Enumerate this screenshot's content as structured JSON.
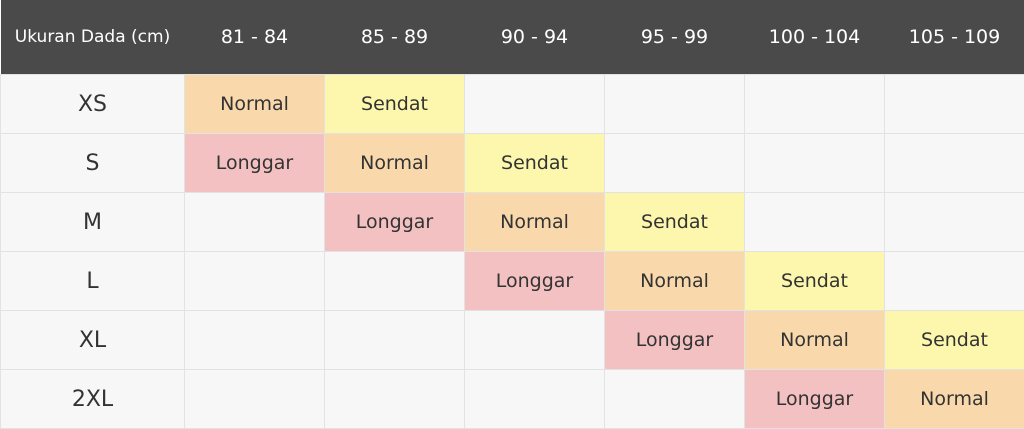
{
  "header": {
    "corner": "Ukuran Dada (cm)",
    "columns": [
      "81 - 84",
      "85 - 89",
      "90 - 94",
      "95 - 99",
      "100 - 104",
      "105 - 109"
    ]
  },
  "colors": {
    "header_bg": "#4a4a4a",
    "normal": "#f9d9ac",
    "sendat": "#fdf7ad",
    "longgar": "#f4c1c2",
    "empty": "#f7f7f7"
  },
  "rows": [
    {
      "size": "XS",
      "cells": [
        "Normal",
        "Sendat",
        "",
        "",
        "",
        ""
      ]
    },
    {
      "size": "S",
      "cells": [
        "Longgar",
        "Normal",
        "Sendat",
        "",
        "",
        ""
      ]
    },
    {
      "size": "M",
      "cells": [
        "",
        "Longgar",
        "Normal",
        "Sendat",
        "",
        ""
      ]
    },
    {
      "size": "L",
      "cells": [
        "",
        "",
        "Longgar",
        "Normal",
        "Sendat",
        ""
      ]
    },
    {
      "size": "XL",
      "cells": [
        "",
        "",
        "",
        "Longgar",
        "Normal",
        "Sendat"
      ]
    },
    {
      "size": "2XL",
      "cells": [
        "",
        "",
        "",
        "",
        "Longgar",
        "Normal"
      ]
    }
  ]
}
